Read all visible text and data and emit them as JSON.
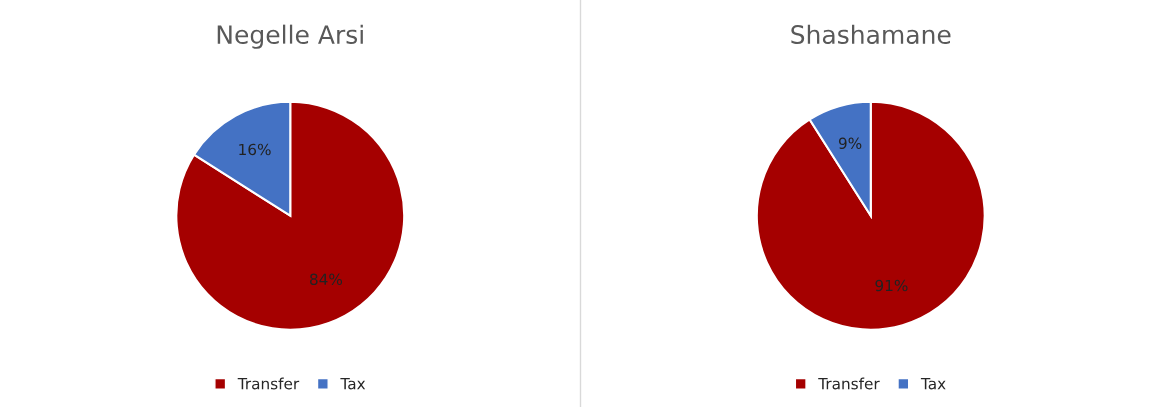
{
  "chart_data": [
    {
      "type": "pie",
      "title": "Negelle Arsi",
      "categories": [
        "Transfer",
        "Tax"
      ],
      "values": [
        84,
        16
      ],
      "colors": [
        "#a50000",
        "#4472c4"
      ],
      "value_labels": [
        "84%",
        "16%"
      ],
      "legend": "bottom"
    },
    {
      "type": "pie",
      "title": "Shashamane",
      "categories": [
        "Transfer",
        "Tax"
      ],
      "values": [
        91,
        9
      ],
      "colors": [
        "#a50000",
        "#4472c4"
      ],
      "value_labels": [
        "91%",
        "9%"
      ],
      "legend": "bottom"
    }
  ]
}
